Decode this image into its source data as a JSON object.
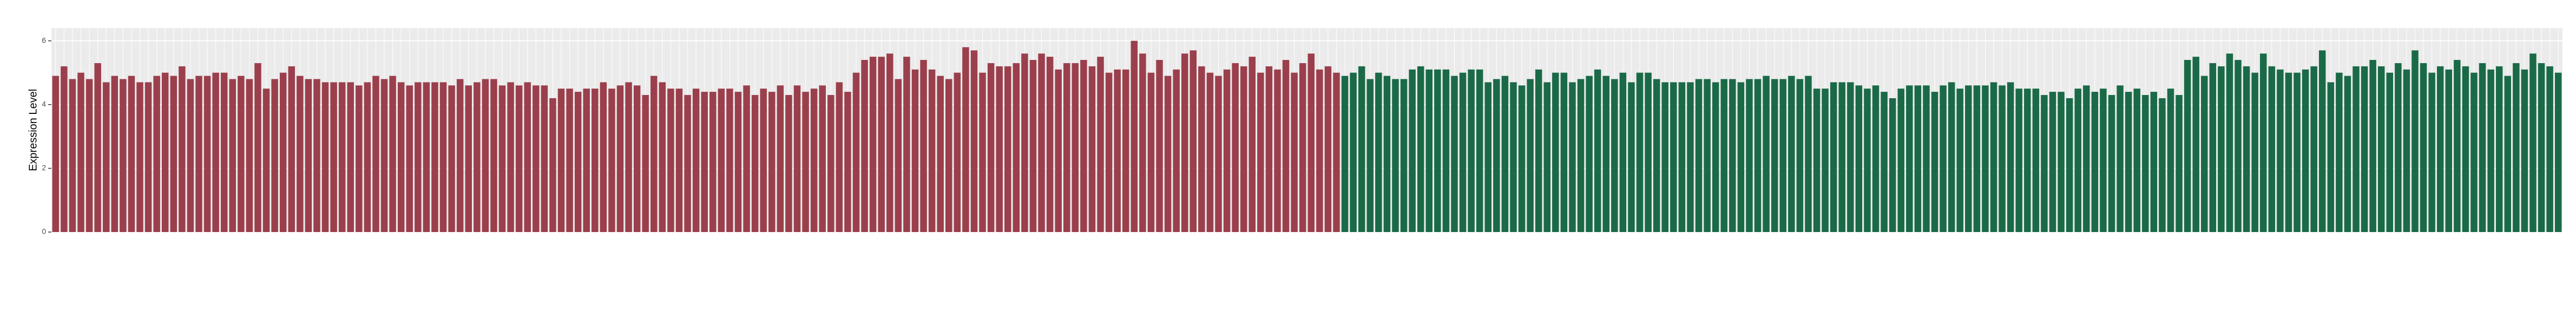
{
  "chart_data": {
    "type": "bar",
    "y_label": "Expression Level",
    "ylim": [
      0,
      6.4
    ],
    "yticks": [
      0,
      2,
      4,
      6
    ],
    "grid": true,
    "series": [
      {
        "color": "#9b3f4c",
        "values": [
          4.9,
          5.2,
          4.8,
          5.0,
          4.8,
          5.3,
          4.7,
          4.9,
          4.8,
          4.9,
          4.7,
          4.7,
          4.9,
          5.0,
          4.9,
          5.2,
          4.8,
          4.9,
          4.9,
          5.0,
          5.0,
          4.8,
          4.9,
          4.8,
          5.3,
          4.5,
          4.8,
          5.0,
          5.2,
          4.9,
          4.8,
          4.8,
          4.7,
          4.7,
          4.7,
          4.7,
          4.6,
          4.7,
          4.9,
          4.8,
          4.9,
          4.7,
          4.6,
          4.7,
          4.7,
          4.7,
          4.7,
          4.6,
          4.8,
          4.6,
          4.7,
          4.8,
          4.8,
          4.6,
          4.7,
          4.6,
          4.7,
          4.6,
          4.6,
          4.2,
          4.5,
          4.5,
          4.4,
          4.5,
          4.5,
          4.7,
          4.5,
          4.6,
          4.7,
          4.6,
          4.3,
          4.9,
          4.7,
          4.5,
          4.5,
          4.3,
          4.5,
          4.4,
          4.4,
          4.5,
          4.5,
          4.4,
          4.6,
          4.3,
          4.5,
          4.4,
          4.6,
          4.3,
          4.6,
          4.4,
          4.5,
          4.6,
          4.3,
          4.7,
          4.4,
          5.0,
          5.4,
          5.5,
          5.5,
          5.6,
          4.8,
          5.5,
          5.1,
          5.4,
          5.1,
          4.9,
          4.8,
          5.0,
          5.8,
          5.7,
          5.0,
          5.3,
          5.2,
          5.2,
          5.3,
          5.6,
          5.4,
          5.6,
          5.5,
          5.1,
          5.3,
          5.3,
          5.4,
          5.2,
          5.5,
          5.0,
          5.1,
          5.1,
          6.0,
          5.6,
          5.0,
          5.4,
          4.9,
          5.1,
          5.6,
          5.7,
          5.2,
          5.0,
          4.9,
          5.1,
          5.3,
          5.2,
          5.5,
          5.0,
          5.2,
          5.1,
          5.4,
          5.0,
          5.3,
          5.6,
          5.1,
          5.2,
          5.0
        ]
      },
      {
        "color": "#1a6a47",
        "values": [
          4.9,
          5.0,
          5.2,
          4.8,
          5.0,
          4.9,
          4.8,
          4.8,
          5.1,
          5.2,
          5.1,
          5.1,
          5.1,
          4.9,
          5.0,
          5.1,
          5.1,
          4.7,
          4.8,
          4.9,
          4.7,
          4.6,
          4.8,
          5.1,
          4.7,
          5.0,
          5.0,
          4.7,
          4.8,
          4.9,
          5.1,
          4.9,
          4.8,
          5.0,
          4.7,
          5.0,
          5.0,
          4.8,
          4.7,
          4.7,
          4.7,
          4.7,
          4.8,
          4.8,
          4.7,
          4.8,
          4.8,
          4.7,
          4.8,
          4.8,
          4.9,
          4.8,
          4.8,
          4.9,
          4.8,
          4.9,
          4.5,
          4.5,
          4.7,
          4.7,
          4.7,
          4.6,
          4.5,
          4.6,
          4.4,
          4.2,
          4.5,
          4.6,
          4.6,
          4.6,
          4.4,
          4.6,
          4.7,
          4.5,
          4.6,
          4.6,
          4.6,
          4.7,
          4.6,
          4.7,
          4.5,
          4.5,
          4.5,
          4.3,
          4.4,
          4.4,
          4.2,
          4.5,
          4.6,
          4.4,
          4.5,
          4.3,
          4.6,
          4.4,
          4.5,
          4.3,
          4.4,
          4.2,
          4.5,
          4.3,
          5.4,
          5.5,
          4.9,
          5.3,
          5.2,
          5.6,
          5.4,
          5.2,
          5.0,
          5.6,
          5.2,
          5.1,
          5.0,
          5.0,
          5.1,
          5.2,
          5.7,
          4.7,
          5.0,
          4.9,
          5.2,
          5.2,
          5.4,
          5.2,
          5.0,
          5.3,
          5.1,
          5.7,
          5.3,
          5.0,
          5.2,
          5.1,
          5.4,
          5.2,
          5.0,
          5.3,
          5.1,
          5.2,
          4.9,
          5.3,
          5.1,
          5.6,
          5.3,
          5.2,
          5.0
        ]
      }
    ]
  }
}
